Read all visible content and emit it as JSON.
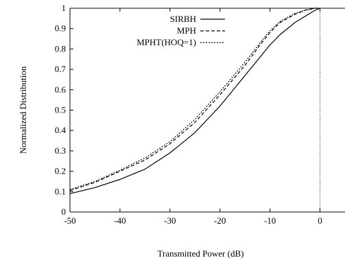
{
  "chart_data": {
    "type": "line",
    "title": "",
    "xlabel": "Transmitted Power (dB)",
    "ylabel": "Normalized Distribution",
    "xlim": [
      -50,
      5
    ],
    "ylim": [
      0,
      1
    ],
    "xticks": [
      "-50",
      "-40",
      "-30",
      "-20",
      "-10",
      "0"
    ],
    "yticks": [
      "0",
      "0.1",
      "0.2",
      "0.3",
      "0.4",
      "0.5",
      "0.6",
      "0.7",
      "0.8",
      "0.9",
      "1"
    ],
    "grid": false,
    "legend_position": "top-right",
    "reference_line": {
      "x": 0,
      "style": "dotted"
    },
    "series": [
      {
        "name": "SIRBH",
        "style": "solid",
        "x": [
          -50,
          -45,
          -40,
          -35,
          -30,
          -25,
          -20,
          -15,
          -12,
          -10,
          -8,
          -5,
          -3,
          -1,
          0
        ],
        "y": [
          0.09,
          0.12,
          0.16,
          0.21,
          0.29,
          0.39,
          0.52,
          0.67,
          0.76,
          0.82,
          0.87,
          0.93,
          0.96,
          0.99,
          1.0
        ]
      },
      {
        "name": "MPH",
        "style": "dashed",
        "x": [
          -50,
          -45,
          -40,
          -35,
          -30,
          -25,
          -20,
          -15,
          -12,
          -10,
          -8,
          -5,
          -3,
          -1,
          0
        ],
        "y": [
          0.105,
          0.145,
          0.2,
          0.255,
          0.335,
          0.44,
          0.575,
          0.72,
          0.82,
          0.88,
          0.93,
          0.97,
          0.99,
          1.0,
          1.0
        ]
      },
      {
        "name": "MPHT(HOQ=1)",
        "style": "dotted",
        "x": [
          -50,
          -45,
          -40,
          -35,
          -30,
          -25,
          -20,
          -15,
          -12,
          -10,
          -8,
          -5,
          -3,
          -1,
          0
        ],
        "y": [
          0.11,
          0.15,
          0.205,
          0.265,
          0.345,
          0.455,
          0.59,
          0.735,
          0.83,
          0.89,
          0.935,
          0.975,
          0.99,
          1.0,
          1.0
        ]
      }
    ]
  }
}
